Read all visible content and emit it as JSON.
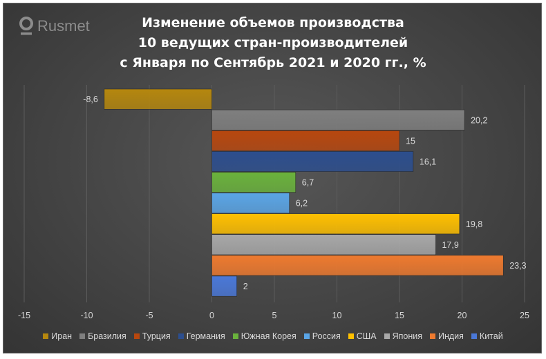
{
  "logo": {
    "text": "Rusmet"
  },
  "title_lines": [
    "Изменение объемов производства",
    "10 ведущих стран-производителей",
    "с Января по Сентябрь 2021 и 2020 гг., %"
  ],
  "colors": {
    "Иран": "#b5870e",
    "Бразилия": "#7f7f7f",
    "Турция": "#b8470e",
    "Германия": "#2c4e8e",
    "Южная Корея": "#6ab23c",
    "Россия": "#5aa5e6",
    "США": "#ffc000",
    "Япония": "#a8a8a8",
    "Индия": "#ee7a2f",
    "Китай": "#4a78d8"
  },
  "chart_data": {
    "type": "bar",
    "orientation": "horizontal",
    "title": "Изменение объемов производства 10 ведущих стран-производителей с Января по Сентябрь 2021 и 2020 гг., %",
    "categories": [
      "Иран",
      "Бразилия",
      "Турция",
      "Германия",
      "Южная Корея",
      "Россия",
      "США",
      "Япония",
      "Индия",
      "Китай"
    ],
    "values": [
      -8.6,
      20.2,
      15,
      16.1,
      6.7,
      6.2,
      19.8,
      17.9,
      23.3,
      2
    ],
    "data_labels": [
      "-8,6",
      "20,2",
      "15",
      "16,1",
      "6,7",
      "6,2",
      "19,8",
      "17,9",
      "23,3",
      "2"
    ],
    "xlim": [
      -15,
      25
    ],
    "x_ticks": [
      -15,
      -10,
      -5,
      0,
      5,
      10,
      15,
      20,
      25
    ],
    "grid": "vertical",
    "legend_position": "bottom"
  }
}
